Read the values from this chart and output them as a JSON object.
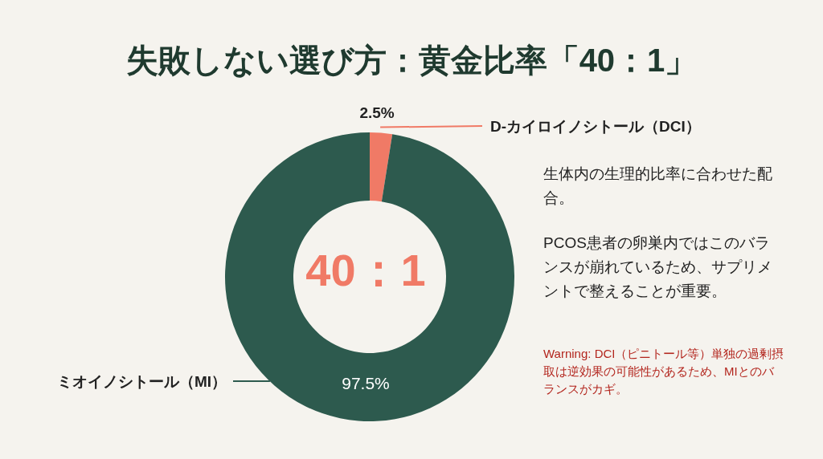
{
  "chart_data": {
    "type": "donut",
    "title": "失敗しない選び方：黄金比率「40：1」",
    "categories": [
      "D-カイロイノシトール（DCI）",
      "ミオイノシトール（MI）"
    ],
    "values": [
      2.5,
      97.5
    ],
    "colors": [
      "#f07a66",
      "#2d5a4e"
    ],
    "value_labels": [
      "2.5%",
      "97.5%"
    ],
    "legend": false,
    "annotations": [
      "40：1",
      "生体内の生理的比率に合わせた配合。",
      "PCOS患者の卵巣内ではこのバランスが崩れているため、サプリメントで整えることが重要。",
      "Warning: DCI（ピニトール等）単独の過剰摂取は逆効果の可能性があるため、MIとのバランスがカギ。"
    ]
  }
}
